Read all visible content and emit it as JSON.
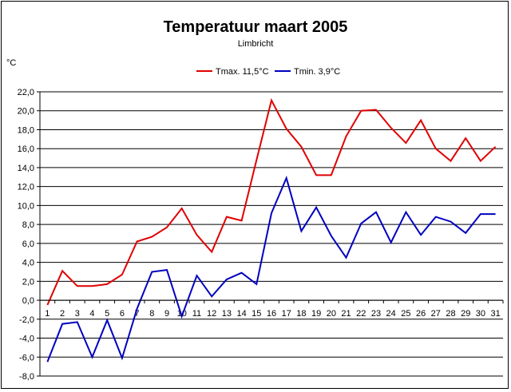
{
  "chart_data": {
    "type": "line",
    "title": "Temperatuur maart 2005",
    "subtitle": "Limbricht",
    "ylabel": "°C",
    "ylim": [
      -8,
      22
    ],
    "yticks": [
      22,
      20,
      18,
      16,
      14,
      12,
      10,
      8,
      6,
      4,
      2,
      0,
      -2,
      -4,
      -6,
      -8
    ],
    "ytick_labels": [
      "22,0",
      "20,0",
      "18,0",
      "16,0",
      "14,0",
      "12,0",
      "10,0",
      "8,0",
      "6,0",
      "4,0",
      "2,0",
      "0,0",
      "-2,0",
      "-4,0",
      "-6,0",
      "-8,0"
    ],
    "categories": [
      "1",
      "2",
      "3",
      "4",
      "5",
      "6",
      "7",
      "8",
      "9",
      "10",
      "11",
      "12",
      "13",
      "14",
      "15",
      "16",
      "17",
      "18",
      "19",
      "20",
      "21",
      "22",
      "23",
      "24",
      "25",
      "26",
      "27",
      "28",
      "29",
      "30",
      "31"
    ],
    "grid": true,
    "legend_position": "top-center",
    "series": [
      {
        "name": "Tmax. 11,5°C",
        "color": "#e00000",
        "values": [
          -0.5,
          3.1,
          1.5,
          1.5,
          1.7,
          2.7,
          6.2,
          6.7,
          7.7,
          9.7,
          6.9,
          5.1,
          8.8,
          8.4,
          14.8,
          21.1,
          18.1,
          16.2,
          13.2,
          13.2,
          17.3,
          20.0,
          20.1,
          18.2,
          16.6,
          19.0,
          16.0,
          14.7,
          17.1,
          14.7,
          16.2
        ]
      },
      {
        "name": "Tmin. 3,9°C",
        "color": "#0000c0",
        "values": [
          -6.5,
          -2.5,
          -2.3,
          -6.0,
          -2.1,
          -6.1,
          -0.9,
          3.0,
          3.2,
          -1.7,
          2.6,
          0.4,
          2.2,
          2.9,
          1.7,
          9.2,
          12.9,
          7.3,
          9.8,
          6.8,
          4.5,
          8.1,
          9.3,
          6.1,
          9.3,
          6.9,
          8.8,
          8.3,
          7.1,
          9.1,
          9.1
        ]
      }
    ]
  }
}
